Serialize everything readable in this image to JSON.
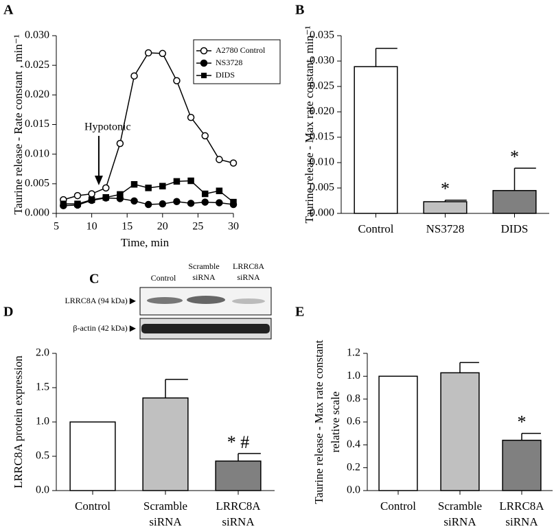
{
  "chart_data": [
    {
      "type": "line",
      "panel_label": "A",
      "xlabel": "Time, min",
      "ylabel": "Taurine release - Rate constant , min⁻¹",
      "annotation": "Hypotonic",
      "x": [
        6,
        8,
        10,
        12,
        14,
        16,
        18,
        20,
        22,
        24,
        26,
        28,
        30
      ],
      "series": [
        {
          "name": "A2780 Control",
          "color": "#000000",
          "marker": "open-circle",
          "values": [
            0.0023,
            0.003,
            0.0033,
            0.0043,
            0.0118,
            0.0232,
            0.0271,
            0.027,
            0.0224,
            0.0162,
            0.0131,
            0.0091,
            0.0085
          ]
        },
        {
          "name": "NS3728",
          "color": "#000000",
          "marker": "circle",
          "values": [
            0.0013,
            0.0014,
            0.0022,
            0.0026,
            0.0025,
            0.0021,
            0.0015,
            0.0016,
            0.002,
            0.0017,
            0.0019,
            0.0018,
            0.0015
          ]
        },
        {
          "name": "DIDS",
          "color": "#000000",
          "marker": "square",
          "values": [
            0.0016,
            0.0016,
            0.0023,
            0.0027,
            0.0032,
            0.0049,
            0.0043,
            0.0046,
            0.0054,
            0.0055,
            0.0033,
            0.0038,
            0.0019
          ]
        }
      ],
      "xlim": [
        5,
        30
      ],
      "xticks": [
        5,
        10,
        15,
        20,
        25,
        30
      ],
      "ylim": [
        0,
        0.03
      ],
      "yticks": [
        {
          "value": 0,
          "label": "0.000"
        },
        {
          "value": 0.005,
          "label": "0.005"
        },
        {
          "value": 0.01,
          "label": "0.010"
        },
        {
          "value": 0.015,
          "label": "0.015"
        },
        {
          "value": 0.02,
          "label": "0.020"
        },
        {
          "value": 0.025,
          "label": "0.025"
        },
        {
          "value": 0.03,
          "label": "0.030"
        }
      ],
      "legend": "upper right"
    },
    {
      "type": "bar",
      "panel_label": "B",
      "ylabel": [
        "Taurine release - Max rate constant, min⁻¹"
      ],
      "categories": [
        [
          "Control"
        ],
        [
          "NS3728"
        ],
        [
          "DIDS"
        ]
      ],
      "values": [
        0.0289,
        0.0023,
        0.0045
      ],
      "errors": [
        0.0036,
        0.0003,
        0.0044
      ],
      "colors": [
        "#ffffff",
        "#c0c0c0",
        "#808080"
      ],
      "value_annotations": [
        null,
        "*",
        "*"
      ],
      "ylim": [
        0,
        0.035
      ],
      "yticks": [
        {
          "value": 0,
          "label": "0.000"
        },
        {
          "value": 0.005,
          "label": "0.005"
        },
        {
          "value": 0.01,
          "label": "0.010"
        },
        {
          "value": 0.015,
          "label": "0.015"
        },
        {
          "value": 0.02,
          "label": "0.020"
        },
        {
          "value": 0.025,
          "label": "0.025"
        },
        {
          "value": 0.03,
          "label": "0.030"
        },
        {
          "value": 0.035,
          "label": "0.035"
        }
      ]
    },
    {
      "type": "bar",
      "panel_label": "D",
      "ylabel": [
        "LRRC8A protein expression"
      ],
      "categories": [
        [
          "Control"
        ],
        [
          "Scramble",
          "siRNA"
        ],
        [
          "LRRC8A",
          "siRNA"
        ]
      ],
      "values": [
        1.0,
        1.35,
        0.43
      ],
      "errors": [
        null,
        0.27,
        0.11
      ],
      "colors": [
        "#ffffff",
        "#c0c0c0",
        "#808080"
      ],
      "value_annotations": [
        null,
        null,
        "* #"
      ],
      "ylim": [
        0,
        2.0
      ],
      "yticks": [
        {
          "value": 0,
          "label": "0.0"
        },
        {
          "value": 0.5,
          "label": "0.5"
        },
        {
          "value": 1,
          "label": "1.0"
        },
        {
          "value": 1.5,
          "label": "1.5"
        },
        {
          "value": 2,
          "label": "2.0"
        }
      ]
    },
    {
      "type": "bar",
      "panel_label": "E",
      "ylabel": [
        "Taurine release - Max rate constant",
        "relative scale"
      ],
      "categories": [
        [
          "Control"
        ],
        [
          "Scramble",
          "siRNA"
        ],
        [
          "LRRC8A",
          "siRNA"
        ]
      ],
      "values": [
        1.0,
        1.03,
        0.44
      ],
      "errors": [
        null,
        0.09,
        0.06
      ],
      "colors": [
        "#ffffff",
        "#c0c0c0",
        "#808080"
      ],
      "value_annotations": [
        null,
        null,
        "*"
      ],
      "ylim": [
        0,
        1.2
      ],
      "yticks": [
        {
          "value": 0,
          "label": "0.0"
        },
        {
          "value": 0.2,
          "label": "0.2"
        },
        {
          "value": 0.4,
          "label": "0.4"
        },
        {
          "value": 0.6,
          "label": "0.6"
        },
        {
          "value": 0.8,
          "label": "0.8"
        },
        {
          "value": 1,
          "label": "1.0"
        },
        {
          "value": 1.2,
          "label": "1.2"
        }
      ]
    }
  ],
  "blot": {
    "panel_label": "C",
    "columns": [
      [
        "Control"
      ],
      [
        "Scramble",
        "siRNA"
      ],
      [
        "LRRC8A",
        "siRNA"
      ]
    ],
    "rows": [
      "LRRC8A (94 kDa) ▶",
      "β-actin (42 kDa) ▶"
    ]
  }
}
